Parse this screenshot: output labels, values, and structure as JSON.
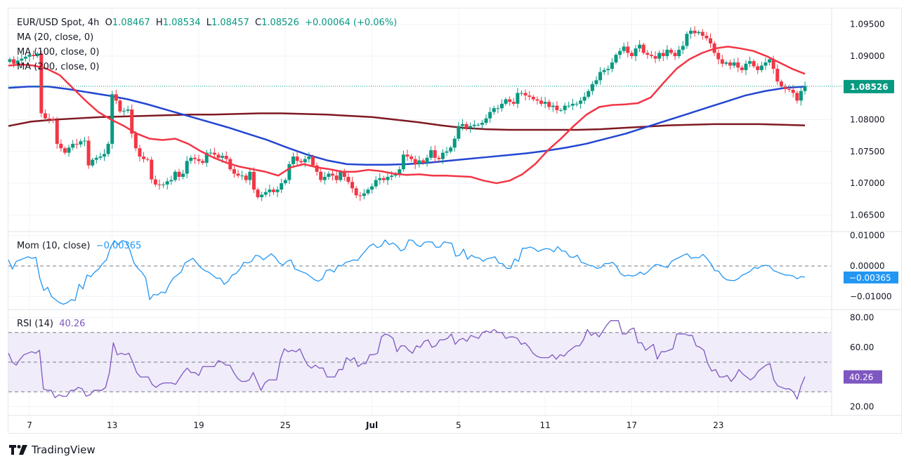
{
  "header": {
    "symbol": "EUR/USD Spot, 4h",
    "o_label": "O",
    "o": "1.08467",
    "h_label": "H",
    "h": "1.08534",
    "l_label": "L",
    "l": "1.08457",
    "c_label": "C",
    "c": "1.08526",
    "change": "+0.00064 (+0.06%)"
  },
  "indicators": {
    "ma20": "MA (20, close, 0)",
    "ma100": "MA (100, close, 0)",
    "ma200": "MA (200, close, 0)",
    "mom_label": "Mom (10, close)",
    "mom_value": "−0.00365",
    "rsi_label": "RSI (14)",
    "rsi_value": "40.26"
  },
  "brand": {
    "name": "TradingView"
  },
  "colors": {
    "up": "#089981",
    "down": "#f23645",
    "ma20": "#f23645",
    "ma100": "#2346d1",
    "ma200": "#801922",
    "mom": "#2196f3",
    "rsi": "#7e57c2",
    "rsi_band": "#f0ecf9",
    "last_price": "#089981"
  },
  "chart_data": [
    {
      "type": "candlestick",
      "title": "EUR/USD Spot, 4h",
      "ylim": [
        1.0625,
        1.0975
      ],
      "yticks": [
        "1.09500",
        "1.09000",
        "1.08000",
        "1.07500",
        "1.07000",
        "1.06500"
      ],
      "ytick_values": [
        1.095,
        1.09,
        1.08,
        1.075,
        1.07,
        1.065
      ],
      "last_price_label": "1.08526",
      "last_price": 1.08526,
      "xticks": [
        "7",
        "13",
        "19",
        "25",
        "Jul",
        "5",
        "11",
        "17",
        "23"
      ],
      "xtick_index": [
        5,
        26,
        48,
        70,
        92,
        114,
        136,
        158,
        180
      ],
      "closes": [
        1.0895,
        1.0888,
        1.0893,
        1.0896,
        1.0899,
        1.0902,
        1.09,
        1.0904,
        1.081,
        1.0802,
        1.0801,
        1.0799,
        1.0762,
        1.0755,
        1.0748,
        1.0756,
        1.0762,
        1.0761,
        1.0766,
        1.0767,
        1.0728,
        1.0737,
        1.074,
        1.0742,
        1.0746,
        1.0762,
        1.084,
        1.083,
        1.0813,
        1.0814,
        1.0816,
        1.0778,
        1.0755,
        1.0742,
        1.0738,
        1.0737,
        1.0706,
        1.0698,
        1.0697,
        1.0698,
        1.0703,
        1.0705,
        1.0718,
        1.071,
        1.0715,
        1.0735,
        1.074,
        1.0738,
        1.0735,
        1.0732,
        1.0748,
        1.0748,
        1.0745,
        1.074,
        1.0743,
        1.0738,
        1.0722,
        1.0715,
        1.0712,
        1.0712,
        1.0705,
        1.0718,
        1.069,
        1.0678,
        1.0682,
        1.0686,
        1.069,
        1.0686,
        1.069,
        1.07,
        1.0705,
        1.073,
        1.0742,
        1.0735,
        1.0733,
        1.0738,
        1.0742,
        1.0728,
        1.0718,
        1.0705,
        1.071,
        1.0715,
        1.0712,
        1.0705,
        1.0718,
        1.071,
        1.0702,
        1.0692,
        1.0681,
        1.068,
        1.0684,
        1.069,
        1.0695,
        1.0705,
        1.0708,
        1.0705,
        1.071,
        1.0712,
        1.0715,
        1.0722,
        1.0745,
        1.0742,
        1.0738,
        1.073,
        1.0736,
        1.0732,
        1.074,
        1.0752,
        1.074,
        1.0738,
        1.0748,
        1.075,
        1.0756,
        1.077,
        1.079,
        1.0793,
        1.0787,
        1.079,
        1.0792,
        1.0792,
        1.0795,
        1.0802,
        1.0812,
        1.0818,
        1.0818,
        1.0825,
        1.0832,
        1.0828,
        1.0825,
        1.0842,
        1.0842,
        1.0838,
        1.0836,
        1.0832,
        1.083,
        1.0825,
        1.0828,
        1.082,
        1.0822,
        1.0815,
        1.0815,
        1.0822,
        1.0822,
        1.0825,
        1.0825,
        1.083,
        1.0836,
        1.0845,
        1.0856,
        1.0862,
        1.0875,
        1.0878,
        1.088,
        1.089,
        1.0902,
        1.0908,
        1.0915,
        1.0905,
        1.09,
        1.0912,
        1.0918,
        1.0905,
        1.0902,
        1.09,
        1.0896,
        1.0905,
        1.09,
        1.091,
        1.0905,
        1.09,
        1.091,
        1.0916,
        1.0935,
        1.094,
        1.0936,
        1.0938,
        1.0932,
        1.0928,
        1.092,
        1.0905,
        1.0895,
        1.0888,
        1.089,
        1.0885,
        1.089,
        1.0882,
        1.0878,
        1.0888,
        1.0892,
        1.0884,
        1.0878,
        1.0885,
        1.089,
        1.0895,
        1.088,
        1.086,
        1.0852,
        1.0848,
        1.0847,
        1.0842,
        1.083,
        1.0845,
        1.0853
      ],
      "opens_note": "open = previous close",
      "ma20": [
        1.0885,
        1.0887,
        1.0885,
        1.088,
        1.087,
        1.085,
        1.083,
        1.0812,
        1.08,
        1.079,
        1.0778,
        1.077,
        1.0768,
        1.077,
        1.0762,
        1.075,
        1.074,
        1.0732,
        1.0726,
        1.0722,
        1.0718,
        1.0712,
        1.0725,
        1.073,
        1.0725,
        1.0722,
        1.0718,
        1.0718,
        1.0721,
        1.0719,
        1.0715,
        1.0713,
        1.0714,
        1.0712,
        1.0712,
        1.0711,
        1.071,
        1.0704,
        1.07,
        1.0704,
        1.0714,
        1.073,
        1.0752,
        1.077,
        1.079,
        1.0808,
        1.082,
        1.0823,
        1.0824,
        1.0826,
        1.0835,
        1.0858,
        1.088,
        1.0895,
        1.0905,
        1.0912,
        1.0915,
        1.0912,
        1.0908,
        1.09,
        1.089,
        1.088,
        1.0872
      ],
      "ma100": [
        1.085,
        1.0852,
        1.0852,
        1.0848,
        1.0843,
        1.0838,
        1.0832,
        1.0824,
        1.0815,
        1.0806,
        1.0797,
        1.0788,
        1.0778,
        1.0768,
        1.0756,
        1.0745,
        1.0736,
        1.073,
        1.0729,
        1.0729,
        1.073,
        1.0732,
        1.0735,
        1.0738,
        1.0741,
        1.0744,
        1.0747,
        1.0751,
        1.0756,
        1.0762,
        1.077,
        1.0778,
        1.0788,
        1.0798,
        1.0808,
        1.0818,
        1.0828,
        1.0838,
        1.0845,
        1.085,
        1.0852
      ],
      "ma200": [
        1.079,
        1.0797,
        1.08,
        1.0802,
        1.0804,
        1.0805,
        1.0806,
        1.0807,
        1.0808,
        1.0808,
        1.0809,
        1.081,
        1.081,
        1.0809,
        1.0808,
        1.0806,
        1.0804,
        1.08,
        1.0796,
        1.0791,
        1.0787,
        1.0785,
        1.0784,
        1.0784,
        1.0784,
        1.0784,
        1.0785,
        1.0787,
        1.0789,
        1.0791,
        1.0792,
        1.0793,
        1.0793,
        1.0793,
        1.0792,
        1.0791
      ]
    },
    {
      "type": "line",
      "title": "Mom (10, close)",
      "ylim": [
        -0.014,
        0.011
      ],
      "yticks": [
        "0.01000",
        "0.00000",
        "−0.01000"
      ],
      "ytick_values": [
        0.01,
        0.0,
        -0.01
      ],
      "last_value_label": "−0.00365",
      "values": [
        0.002,
        -0.001,
        0.0015,
        0.002,
        0.0025,
        0.003,
        0.0025,
        0.0028,
        -0.004,
        -0.008,
        -0.007,
        -0.01,
        -0.011,
        -0.012,
        -0.0125,
        -0.012,
        -0.011,
        -0.0113,
        -0.006,
        -0.0075,
        -0.003,
        -0.0035,
        -0.002,
        -0.001,
        0.0008,
        0.002,
        0.006,
        0.0083,
        0.007,
        0.0083,
        0.0079,
        0.005,
        0.001,
        -0.0008,
        -0.002,
        -0.004,
        -0.011,
        -0.0093,
        -0.0095,
        -0.0085,
        -0.0088,
        -0.006,
        -0.004,
        -0.003,
        -0.002,
        0.001,
        0.0017,
        0.0025,
        0.001,
        -0.0005,
        -0.0015,
        -0.002,
        -0.003,
        -0.004,
        -0.004,
        -0.006,
        -0.005,
        -0.003,
        -0.0025,
        -0.001,
        0.0012,
        0.001,
        0.0015,
        0.0035,
        0.0032,
        0.002,
        0.003,
        0.004,
        0.0028,
        0.001,
        0.0003,
        0.0015,
        0.002,
        -0.001,
        -0.0015,
        -0.002,
        -0.0025,
        -0.0035,
        -0.0045,
        -0.005,
        -0.0042,
        -0.0015,
        -0.0012,
        -0.002,
        0.0002,
        0.0,
        0.0012,
        0.0015,
        0.002,
        0.0018,
        0.0035,
        0.005,
        0.0065,
        0.0072,
        0.006,
        0.0065,
        0.0085,
        0.007,
        0.0075,
        0.0066,
        0.0049,
        0.0055,
        0.0085,
        0.0084,
        0.0069,
        0.0063,
        0.0077,
        0.0079,
        0.0078,
        0.0061,
        0.0062,
        0.0079,
        0.0076,
        0.0074,
        0.0032,
        0.0035,
        0.0055,
        0.0022,
        0.0035,
        0.0028,
        0.0026,
        0.0015,
        0.0024,
        0.0026,
        0.003,
        0.0009,
        0.0007,
        -0.0008,
        -0.0008,
        0.0023,
        0.0015,
        0.0058,
        0.0058,
        0.0062,
        0.0057,
        0.0047,
        0.0053,
        0.0057,
        0.0055,
        0.0046,
        0.0063,
        0.0049,
        0.0048,
        0.003,
        0.0028,
        0.0035,
        0.0012,
        0.0008,
        0.0002,
        0.0,
        -0.0008,
        -0.0005,
        0.0008,
        0.0008,
        0.0012,
        -0.0002,
        -0.0025,
        -0.0033,
        -0.003,
        -0.0033,
        -0.003,
        -0.002,
        -0.0028,
        -0.0019,
        -0.0005,
        0.0005,
        0.0003,
        -0.0002,
        -0.0005,
        0.0015,
        0.0022,
        0.0028,
        0.0035,
        0.004,
        0.0025,
        0.0028,
        0.0027,
        0.0038,
        0.0025,
        0.0008,
        -0.0015,
        -0.0017,
        -0.0035,
        -0.0045,
        -0.0047,
        -0.0048,
        -0.0042,
        -0.003,
        -0.0025,
        -0.0018,
        -0.0005,
        -0.0008,
        0.0001,
        0.0002,
        0.0,
        -0.0015,
        -0.002,
        -0.0025,
        -0.003,
        -0.003,
        -0.0033,
        -0.0042,
        -0.0035,
        -0.00365
      ]
    },
    {
      "type": "line",
      "title": "RSI (14)",
      "ylim": [
        15,
        85
      ],
      "yticks": [
        "80.00",
        "60.00",
        "20.00"
      ],
      "ytick_values": [
        80,
        60,
        20
      ],
      "band": [
        30,
        70
      ],
      "midline": 50,
      "last_value_label": "40.26",
      "values": [
        56,
        50,
        48,
        52,
        55,
        56,
        57,
        56,
        58,
        32,
        31,
        31,
        26,
        28,
        27,
        27,
        31,
        31,
        33,
        32,
        27,
        28,
        31,
        31,
        31,
        33,
        43,
        63,
        55,
        56,
        55,
        56,
        50,
        43,
        40,
        40,
        40,
        35,
        33,
        35,
        36,
        36,
        36,
        35,
        39,
        43,
        46,
        43,
        43,
        41,
        47,
        47,
        47,
        47,
        51,
        50,
        48,
        48,
        43,
        39,
        37,
        37,
        38,
        43,
        37,
        31,
        36,
        38,
        38,
        38,
        52,
        59,
        57,
        58,
        57,
        59,
        53,
        48,
        46,
        48,
        46,
        46,
        40,
        40,
        40,
        45,
        45,
        53,
        51,
        53,
        47,
        49,
        49,
        55,
        55,
        56,
        67,
        69,
        68,
        66,
        57,
        61,
        61,
        58,
        56,
        61,
        60,
        64,
        65,
        60,
        61,
        65,
        65,
        66,
        69,
        62,
        65,
        66,
        64,
        68,
        67,
        66,
        70,
        71,
        70,
        72,
        70,
        70,
        66,
        67,
        67,
        66,
        62,
        63,
        60,
        56,
        54,
        53,
        53,
        53,
        55,
        52,
        55,
        54,
        57,
        59,
        61,
        61,
        65,
        72,
        68,
        70,
        67,
        71,
        75,
        78,
        78,
        78,
        69,
        69,
        72,
        73,
        63,
        63,
        58,
        60,
        62,
        52,
        57,
        57,
        58,
        59,
        69,
        69,
        69,
        68,
        68,
        61,
        60,
        58,
        49,
        44,
        45,
        40,
        40,
        41,
        37,
        40,
        45,
        42,
        40,
        38,
        40,
        44,
        46,
        48,
        49,
        38,
        34,
        33,
        32,
        32,
        30,
        25,
        34,
        40.26
      ]
    }
  ]
}
